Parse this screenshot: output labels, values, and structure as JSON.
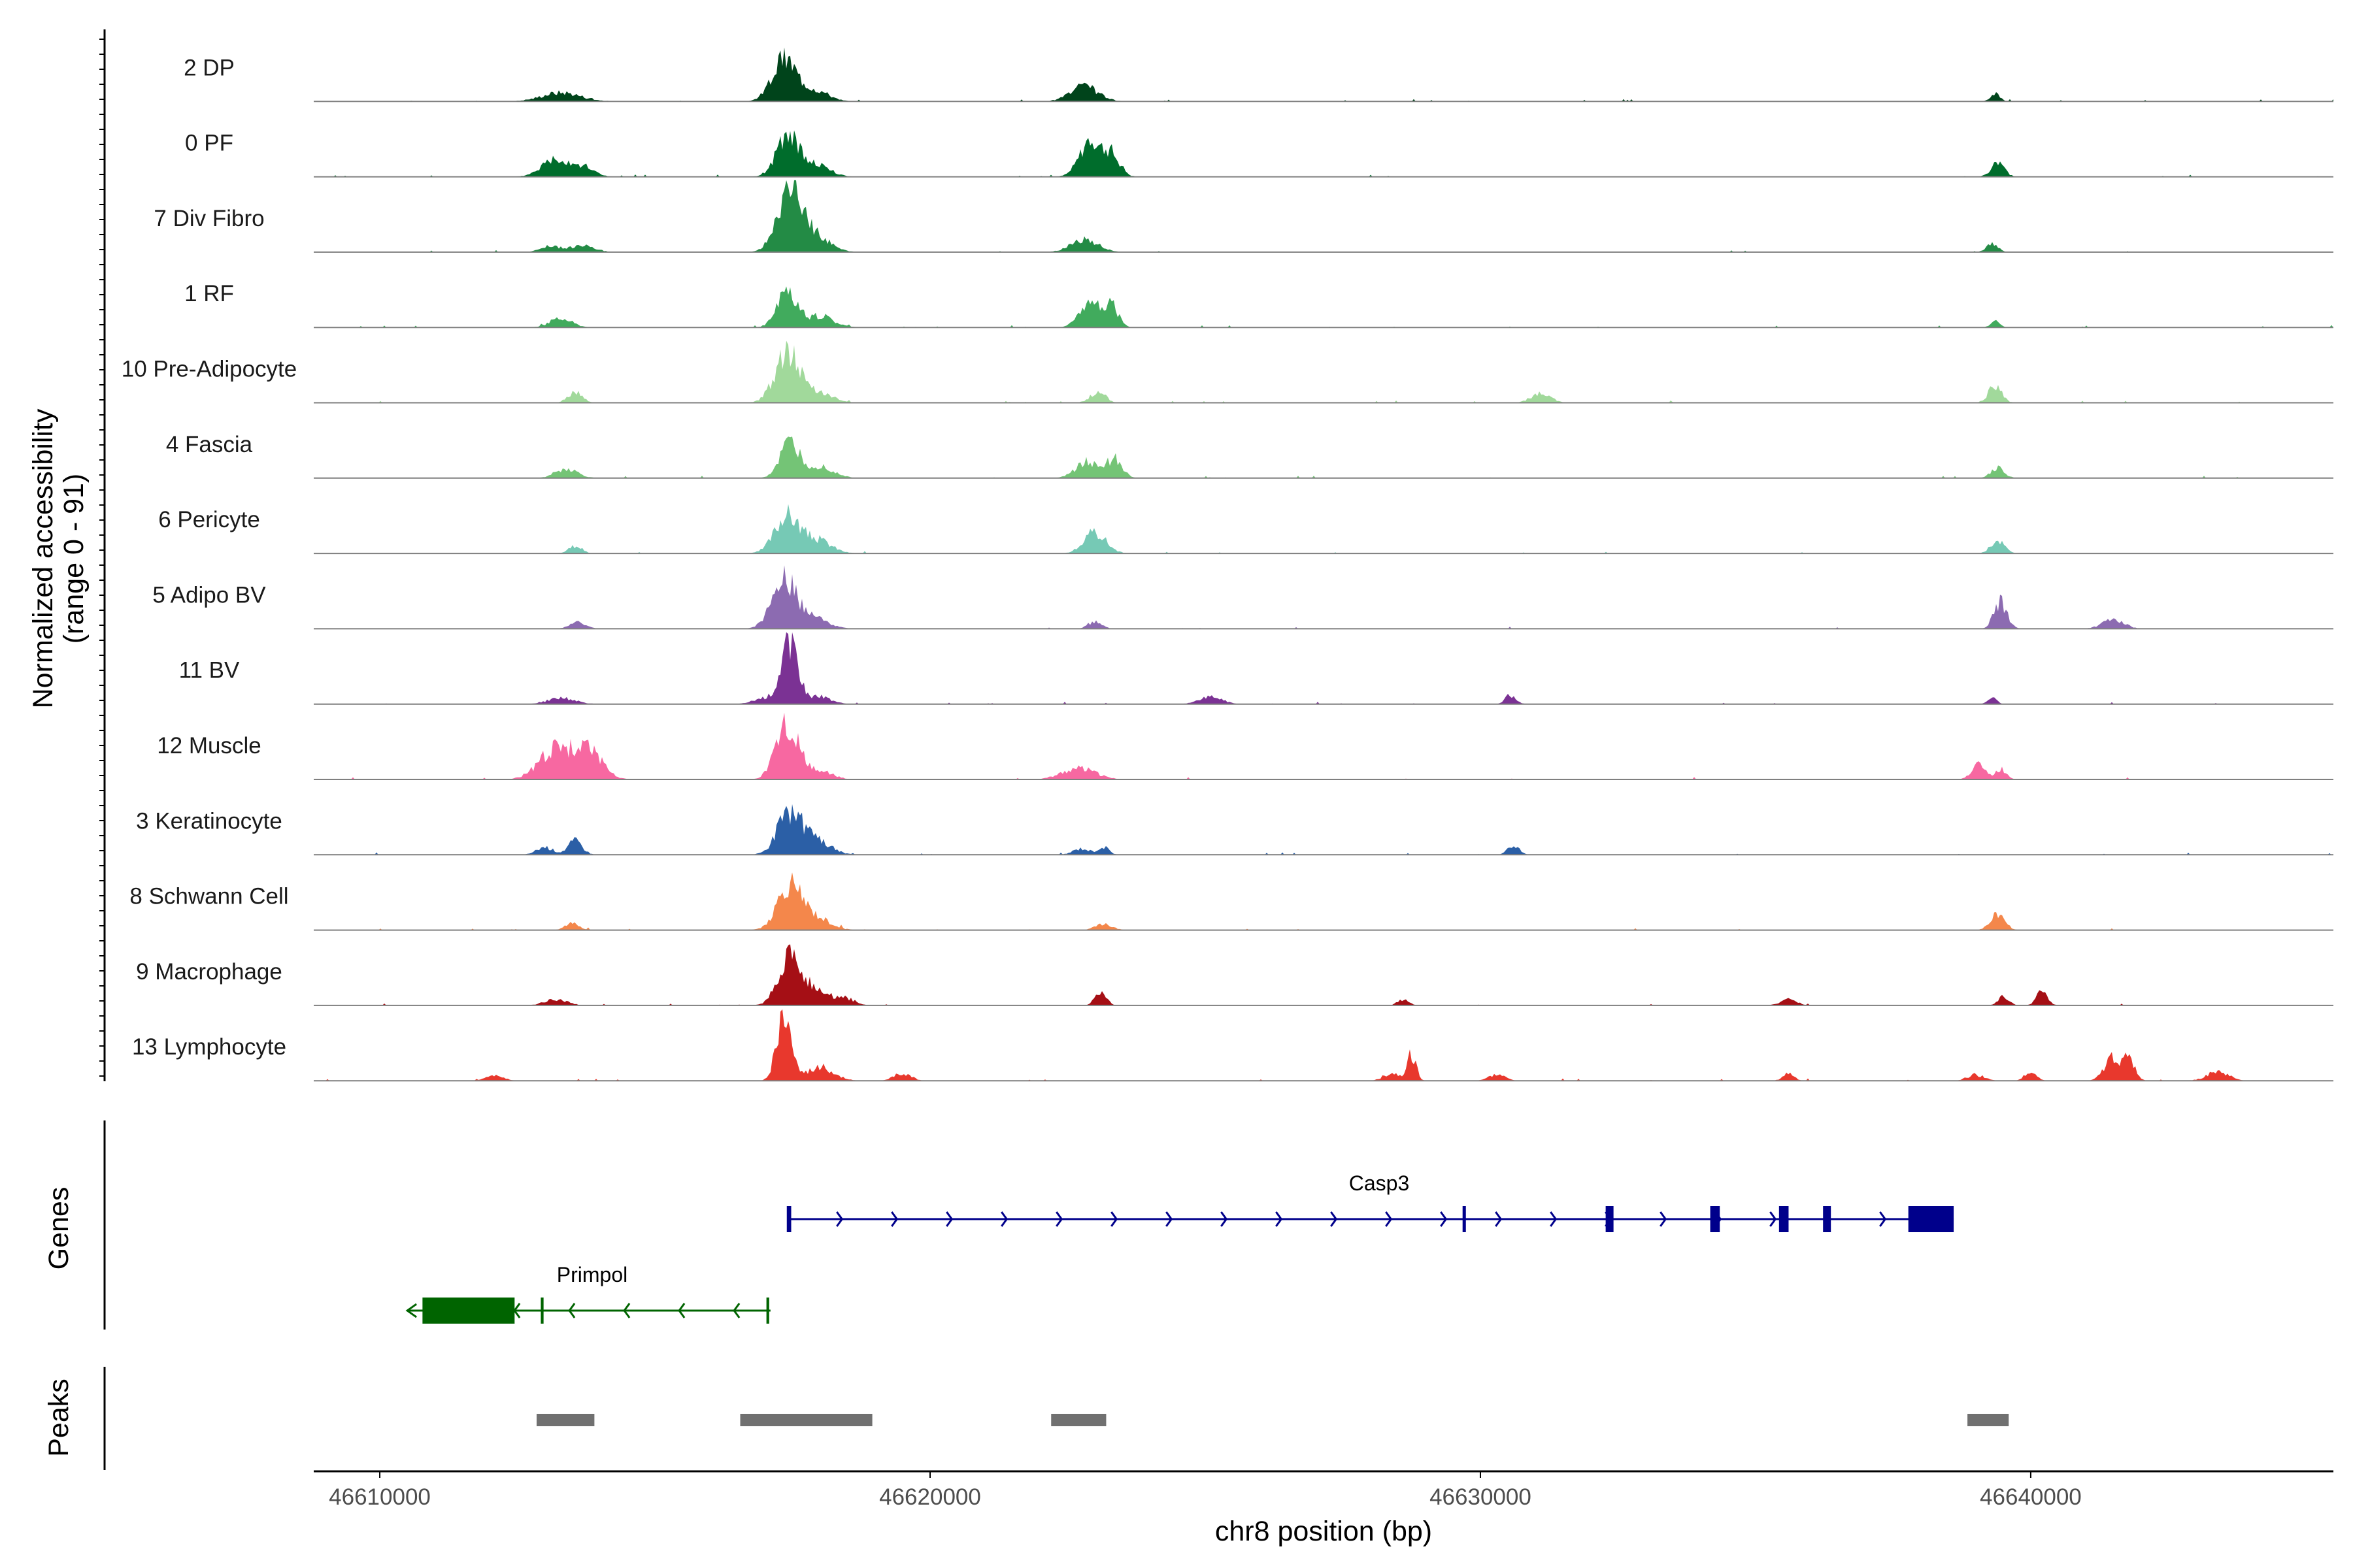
{
  "chart_data": {
    "type": "area",
    "title": "",
    "subtitle": "",
    "xlabel": "chr8 position (bp)",
    "ylabel_line1": "Normalized accessibility",
    "ylabel_line2": "(range 0 - 91)",
    "ylim": [
      0,
      91
    ],
    "xlim": [
      46608800,
      46645500
    ],
    "x_ticks": [
      46610000,
      46620000,
      46630000,
      46640000
    ],
    "x_tick_labels": [
      "46610000",
      "46620000",
      "46630000",
      "46640000"
    ],
    "genes_label": "Genes",
    "peaks_label": "Peaks",
    "series": [
      {
        "name": "2 DP",
        "color": "#00441b",
        "peaks": [
          [
            46613300,
            12,
            350
          ],
          [
            46617350,
            55,
            220
          ],
          [
            46617900,
            15,
            250
          ],
          [
            46622800,
            20,
            250
          ],
          [
            46639350,
            12,
            80
          ]
        ]
      },
      {
        "name": "0 PF",
        "color": "#006d2c",
        "peaks": [
          [
            46613200,
            25,
            250
          ],
          [
            46613700,
            12,
            200
          ],
          [
            46617400,
            50,
            200
          ],
          [
            46617900,
            18,
            250
          ],
          [
            46622900,
            40,
            200
          ],
          [
            46623300,
            30,
            150
          ],
          [
            46639400,
            18,
            120
          ]
        ]
      },
      {
        "name": "7 Div Fibro",
        "color": "#238b45",
        "peaks": [
          [
            46613100,
            8,
            180
          ],
          [
            46613700,
            10,
            200
          ],
          [
            46617450,
            85,
            220
          ],
          [
            46617950,
            20,
            250
          ],
          [
            46622800,
            15,
            250
          ],
          [
            46639300,
            12,
            100
          ]
        ]
      },
      {
        "name": "1 RF",
        "color": "#41ab5d",
        "peaks": [
          [
            46613300,
            12,
            200
          ],
          [
            46617400,
            45,
            180
          ],
          [
            46618000,
            15,
            250
          ],
          [
            46622900,
            35,
            180
          ],
          [
            46623300,
            28,
            120
          ],
          [
            46639350,
            8,
            80
          ]
        ]
      },
      {
        "name": "10 Pre-Adipocyte",
        "color": "#a1d99b",
        "peaks": [
          [
            46613550,
            14,
            130
          ],
          [
            46617400,
            65,
            220
          ],
          [
            46617950,
            15,
            250
          ],
          [
            46623050,
            16,
            130
          ],
          [
            46631100,
            12,
            180
          ],
          [
            46639350,
            22,
            120
          ]
        ]
      },
      {
        "name": "4 Fascia",
        "color": "#74c476",
        "peaks": [
          [
            46613400,
            12,
            200
          ],
          [
            46617450,
            45,
            180
          ],
          [
            46618000,
            16,
            250
          ],
          [
            46622850,
            22,
            200
          ],
          [
            46623350,
            25,
            140
          ],
          [
            46639400,
            14,
            120
          ]
        ]
      },
      {
        "name": "6 Pericyte",
        "color": "#76c9b5",
        "peaks": [
          [
            46613550,
            10,
            120
          ],
          [
            46617400,
            50,
            220
          ],
          [
            46617950,
            18,
            250
          ],
          [
            46623000,
            28,
            200
          ],
          [
            46639400,
            18,
            120
          ]
        ]
      },
      {
        "name": "5 Adipo BV",
        "color": "#8c6bb1",
        "peaks": [
          [
            46613600,
            8,
            150
          ],
          [
            46617350,
            65,
            220
          ],
          [
            46617900,
            14,
            250
          ],
          [
            46623000,
            10,
            120
          ],
          [
            46639450,
            35,
            120
          ],
          [
            46641500,
            12,
            200
          ]
        ]
      },
      {
        "name": "11 BV",
        "color": "#7b3294",
        "peaks": [
          [
            46613300,
            8,
            250
          ],
          [
            46617450,
            85,
            150
          ],
          [
            46617000,
            8,
            200
          ],
          [
            46618000,
            10,
            200
          ],
          [
            46625100,
            10,
            200
          ],
          [
            46630550,
            12,
            100
          ],
          [
            46639300,
            8,
            80
          ]
        ]
      },
      {
        "name": "12 Muscle",
        "color": "#f768a1",
        "peaks": [
          [
            46613200,
            40,
            300
          ],
          [
            46613800,
            35,
            250
          ],
          [
            46617400,
            75,
            200
          ],
          [
            46617950,
            12,
            250
          ],
          [
            46622700,
            15,
            300
          ],
          [
            46639050,
            22,
            120
          ],
          [
            46639450,
            14,
            100
          ]
        ]
      },
      {
        "name": "3 Keratinocyte",
        "color": "#2b5fa6",
        "peaks": [
          [
            46613000,
            10,
            150
          ],
          [
            46613550,
            18,
            130
          ],
          [
            46617450,
            55,
            220
          ],
          [
            46617950,
            18,
            250
          ],
          [
            46622750,
            8,
            150
          ],
          [
            46623150,
            10,
            100
          ],
          [
            46630600,
            14,
            100
          ]
        ]
      },
      {
        "name": "8 Schwann Cell",
        "color": "#f4874b",
        "peaks": [
          [
            46613500,
            10,
            120
          ],
          [
            46617450,
            60,
            220
          ],
          [
            46617950,
            15,
            250
          ],
          [
            46623150,
            8,
            150
          ],
          [
            46639400,
            22,
            130
          ]
        ]
      },
      {
        "name": "9 Macrophage",
        "color": "#a50f15",
        "peaks": [
          [
            46613200,
            8,
            200
          ],
          [
            46617450,
            65,
            200
          ],
          [
            46617950,
            20,
            250
          ],
          [
            46618500,
            8,
            150
          ],
          [
            46623100,
            18,
            100
          ],
          [
            46628600,
            8,
            100
          ],
          [
            46635600,
            8,
            150
          ],
          [
            46640200,
            18,
            100
          ],
          [
            46639500,
            12,
            100
          ]
        ]
      },
      {
        "name": "13 Lymphocyte",
        "color": "#e8382d",
        "peaks": [
          [
            46612100,
            8,
            150
          ],
          [
            46617350,
            90,
            130
          ],
          [
            46618000,
            18,
            250
          ],
          [
            46619500,
            10,
            150
          ],
          [
            46628400,
            10,
            150
          ],
          [
            46628750,
            35,
            80
          ],
          [
            46630300,
            8,
            150
          ],
          [
            46635600,
            10,
            100
          ],
          [
            46639000,
            8,
            150
          ],
          [
            46640000,
            14,
            100
          ],
          [
            46641500,
            32,
            150
          ],
          [
            46641800,
            25,
            100
          ],
          [
            46643400,
            12,
            200
          ]
        ]
      }
    ],
    "genes": [
      {
        "name": "Casp3",
        "strand": "+",
        "color": "#00008b",
        "start": 46617450,
        "end": 46638600,
        "exons": [
          [
            46617420,
            46617500
          ],
          [
            46629700,
            46629760
          ],
          [
            46632300,
            46632400
          ],
          [
            46634200,
            46634350
          ],
          [
            46635450,
            46635600
          ],
          [
            46636250,
            46636350
          ],
          [
            46637800,
            46638600
          ]
        ],
        "thick": [
          [
            46632300,
            46632400
          ],
          [
            46634200,
            46634350
          ],
          [
            46635450,
            46635600
          ],
          [
            46636250,
            46636350
          ],
          [
            46637800,
            46638600
          ]
        ]
      },
      {
        "name": "Primpol",
        "strand": "-",
        "color": "#006400",
        "start": 46610500,
        "end": 46617100,
        "exons": [
          [
            46610800,
            46612450
          ],
          [
            46612950,
            46613000
          ],
          [
            46617050,
            46617100
          ]
        ],
        "thick": [
          [
            46610800,
            46612450
          ]
        ]
      }
    ],
    "peak_regions": [
      [
        46612850,
        46613900
      ],
      [
        46616550,
        46618950
      ],
      [
        46622200,
        46623200
      ],
      [
        46638850,
        46639600
      ]
    ]
  }
}
